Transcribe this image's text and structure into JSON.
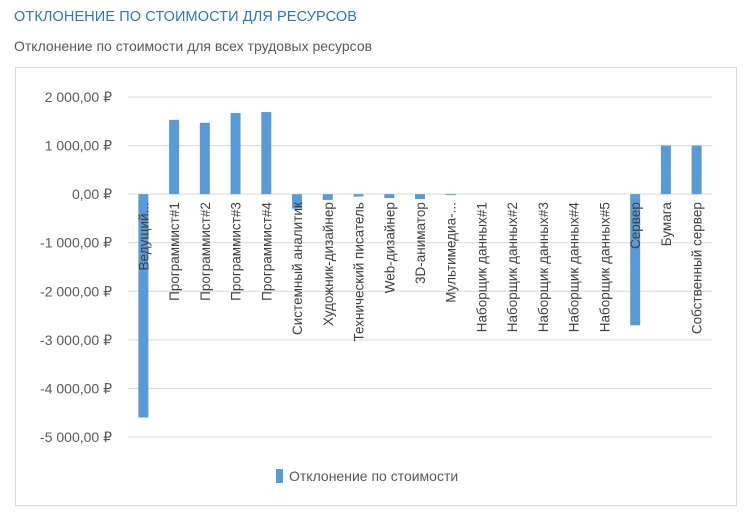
{
  "header": {
    "title": "ОТКЛОНЕНИЕ ПО СТОИМОСТИ ДЛЯ РЕСУРСОВ",
    "subtitle": "Отклонение по стоимости для всех трудовых ресурсов"
  },
  "chart_data": {
    "type": "bar",
    "categories": [
      "Ведущий...",
      "Программист#1",
      "Программист#2",
      "Программист#3",
      "Программист#4",
      "Системный аналитик",
      "Художник-дизайнер",
      "Технический писатель",
      "Web-дизайнер",
      "3D-аниматор",
      "Мультимедиа-...",
      "Наборщик данных#1",
      "Наборщик данных#2",
      "Наборщик данных#3",
      "Наборщик данных#4",
      "Наборщик данных#5",
      "Сервер",
      "Бумага",
      "Собственный сервер"
    ],
    "series": [
      {
        "name": "Отклонение по стоимости",
        "values": [
          -4600,
          1530,
          1470,
          1670,
          1690,
          -300,
          -120,
          -50,
          -80,
          -100,
          -10,
          0,
          0,
          0,
          0,
          0,
          -2700,
          1000,
          1000
        ]
      }
    ],
    "ylim": [
      -5000,
      2000
    ],
    "yticks": [
      2000,
      1000,
      0,
      -1000,
      -2000,
      -3000,
      -4000,
      -5000
    ],
    "ytick_labels": [
      "2 000,00 ₽",
      "1 000,00 ₽",
      "0,00 ₽",
      "-1 000,00 ₽",
      "-2 000,00 ₽",
      "-3 000,00 ₽",
      "-4 000,00 ₽",
      "-5 000,00 ₽"
    ],
    "grid": true,
    "legend_position": "bottom",
    "bar_color": "#5b9bd5"
  }
}
